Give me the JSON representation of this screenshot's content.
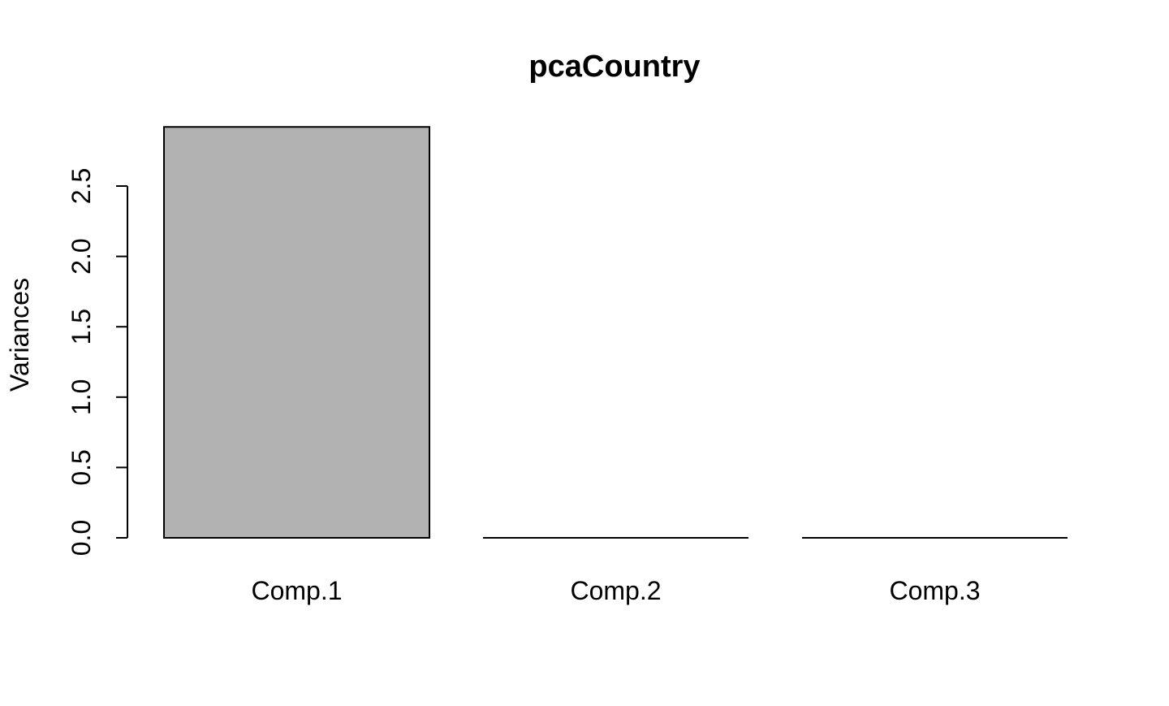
{
  "chart_data": {
    "type": "bar",
    "title": "pcaCountry",
    "xlabel": "",
    "ylabel": "Variances",
    "categories": [
      "Comp.1",
      "Comp.2",
      "Comp.3"
    ],
    "values": [
      2.92,
      0.0,
      0.0
    ],
    "yticks": [
      "0.0",
      "0.5",
      "1.0",
      "1.5",
      "2.0",
      "2.5"
    ],
    "ylim": [
      0,
      2.92
    ],
    "grid": false,
    "bar_color": "#b2b2b2",
    "bar_border_color": "#000000"
  }
}
